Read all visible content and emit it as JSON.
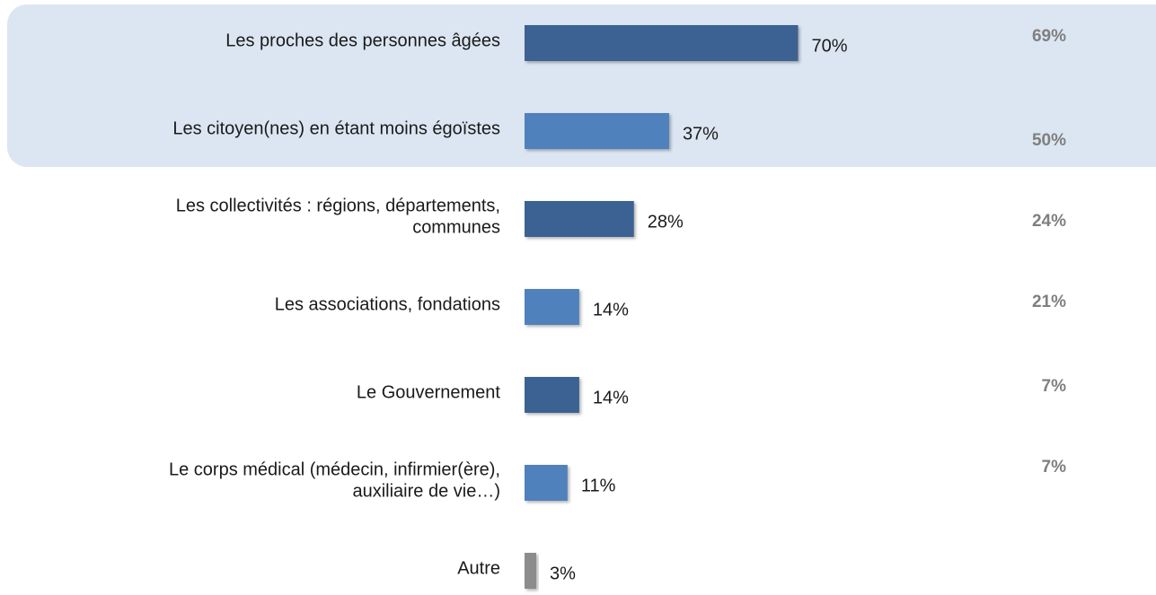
{
  "chart_data": {
    "type": "bar",
    "orientation": "horizontal",
    "categories": [
      [
        "Les proches des personnes âgées"
      ],
      [
        "Les citoyen(nes) en étant moins égoïstes"
      ],
      [
        "Les collectivités : régions, départements,",
        "communes"
      ],
      [
        "Les associations, fondations"
      ],
      [
        "Le Gouvernement"
      ],
      [
        "Le corps médical (médecin, infirmier(ère),",
        "auxiliaire de vie…)"
      ],
      [
        "Autre"
      ]
    ],
    "values": [
      70,
      37,
      28,
      14,
      14,
      11,
      3
    ],
    "value_labels": [
      "70%",
      "37%",
      "28%",
      "14%",
      "14%",
      "11%",
      "3%"
    ],
    "colors": [
      "#3a6293",
      "#4f81bd",
      "#3a6293",
      "#4f81bd",
      "#3a6293",
      "#4f81bd",
      "#8c8c8c"
    ],
    "comparison_values": [
      69,
      50,
      24,
      21,
      7,
      7,
      null
    ],
    "comparison_labels": [
      "69%",
      "50%",
      "24%",
      "21%",
      "7%",
      "7%",
      null
    ]
  }
}
